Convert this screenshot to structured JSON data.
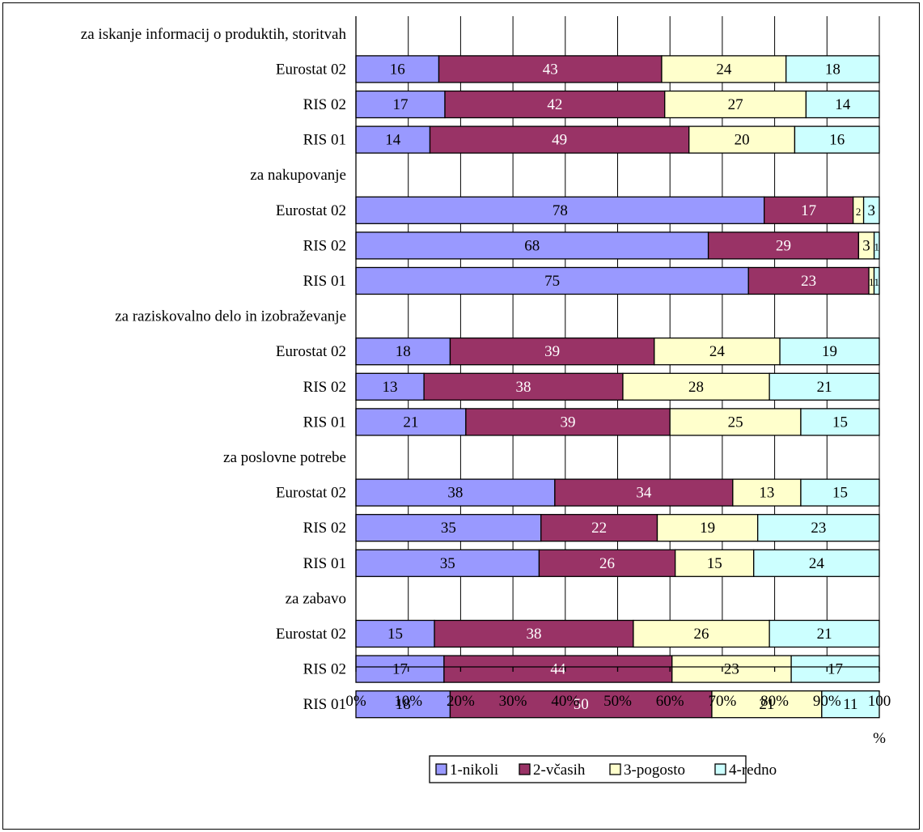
{
  "chart_data": {
    "type": "bar",
    "orientation": "horizontal",
    "stacked": "percent",
    "xlim": [
      0,
      100
    ],
    "x_ticks": [
      "0%",
      "10%",
      "20%",
      "30%",
      "40%",
      "50%",
      "60%",
      "70%",
      "80%",
      "90%",
      "100"
    ],
    "x_unit_label": "%",
    "grid": true,
    "legend_position": "bottom",
    "series": [
      {
        "name": "1-nikoli",
        "color": "#9999ff",
        "label_color": "#000000"
      },
      {
        "name": "2-včasih",
        "color": "#993366",
        "label_color": "#ffffff"
      },
      {
        "name": "3-pogosto",
        "color": "#ffffcc",
        "label_color": "#000000"
      },
      {
        "name": "4-redno",
        "color": "#ccffff",
        "label_color": "#000000"
      }
    ],
    "groups": [
      {
        "label": "za iskanje informacij o produktih, storitvah",
        "rows": [
          {
            "label": "Eurostat 02",
            "values": [
              16,
              43,
              24,
              18
            ]
          },
          {
            "label": "RIS 02",
            "values": [
              17,
              42,
              27,
              14
            ]
          },
          {
            "label": "RIS 01",
            "values": [
              14,
              49,
              20,
              16
            ]
          }
        ]
      },
      {
        "label": "za nakupovanje",
        "rows": [
          {
            "label": "Eurostat 02",
            "values": [
              78,
              17,
              2,
              3
            ]
          },
          {
            "label": "RIS 02",
            "values": [
              68,
              29,
              3,
              1
            ]
          },
          {
            "label": "RIS 01",
            "values": [
              75,
              23,
              1,
              1
            ]
          }
        ]
      },
      {
        "label": "za raziskovalno delo in izobraževanje",
        "rows": [
          {
            "label": "Eurostat 02",
            "values": [
              18,
              39,
              24,
              19
            ]
          },
          {
            "label": "RIS 02",
            "values": [
              13,
              38,
              28,
              21
            ]
          },
          {
            "label": "RIS 01",
            "values": [
              21,
              39,
              25,
              15
            ]
          }
        ]
      },
      {
        "label": "za poslovne potrebe",
        "rows": [
          {
            "label": "Eurostat 02",
            "values": [
              38,
              34,
              13,
              15
            ]
          },
          {
            "label": "RIS 02",
            "values": [
              35,
              22,
              19,
              23
            ]
          },
          {
            "label": "RIS 01",
            "values": [
              35,
              26,
              15,
              24
            ]
          }
        ]
      },
      {
        "label": "za zabavo",
        "rows": [
          {
            "label": "Eurostat 02",
            "values": [
              15,
              38,
              26,
              21
            ]
          },
          {
            "label": "RIS 02",
            "values": [
              17,
              44,
              23,
              17
            ]
          },
          {
            "label": "RIS 01",
            "values": [
              18,
              50,
              21,
              11
            ]
          }
        ]
      }
    ]
  }
}
